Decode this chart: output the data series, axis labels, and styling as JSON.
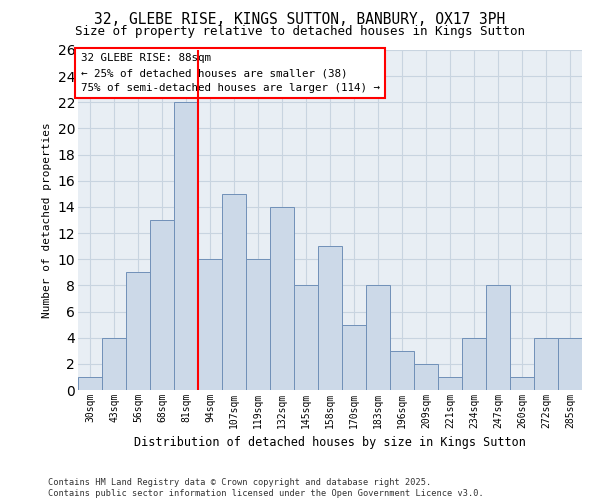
{
  "title_line1": "32, GLEBE RISE, KINGS SUTTON, BANBURY, OX17 3PH",
  "title_line2": "Size of property relative to detached houses in Kings Sutton",
  "xlabel": "Distribution of detached houses by size in Kings Sutton",
  "ylabel": "Number of detached properties",
  "categories": [
    "30sqm",
    "43sqm",
    "56sqm",
    "68sqm",
    "81sqm",
    "94sqm",
    "107sqm",
    "119sqm",
    "132sqm",
    "145sqm",
    "158sqm",
    "170sqm",
    "183sqm",
    "196sqm",
    "209sqm",
    "221sqm",
    "234sqm",
    "247sqm",
    "260sqm",
    "272sqm",
    "285sqm"
  ],
  "values": [
    1,
    4,
    9,
    13,
    22,
    10,
    15,
    10,
    14,
    8,
    11,
    5,
    8,
    3,
    2,
    1,
    4,
    8,
    1,
    4,
    4
  ],
  "bar_color": "#ccd9e8",
  "bar_edge_color": "#7090b8",
  "grid_color": "#c8d4e0",
  "background_color": "#ffffff",
  "plot_bg_color": "#e8eef4",
  "vline_x": 4.5,
  "vline_color": "red",
  "annotation_text": "32 GLEBE RISE: 88sqm\n← 25% of detached houses are smaller (38)\n75% of semi-detached houses are larger (114) →",
  "annotation_box_color": "white",
  "annotation_box_edge": "red",
  "ylim": [
    0,
    26
  ],
  "yticks": [
    0,
    2,
    4,
    6,
    8,
    10,
    12,
    14,
    16,
    18,
    20,
    22,
    24,
    26
  ],
  "footer_line1": "Contains HM Land Registry data © Crown copyright and database right 2025.",
  "footer_line2": "Contains public sector information licensed under the Open Government Licence v3.0."
}
